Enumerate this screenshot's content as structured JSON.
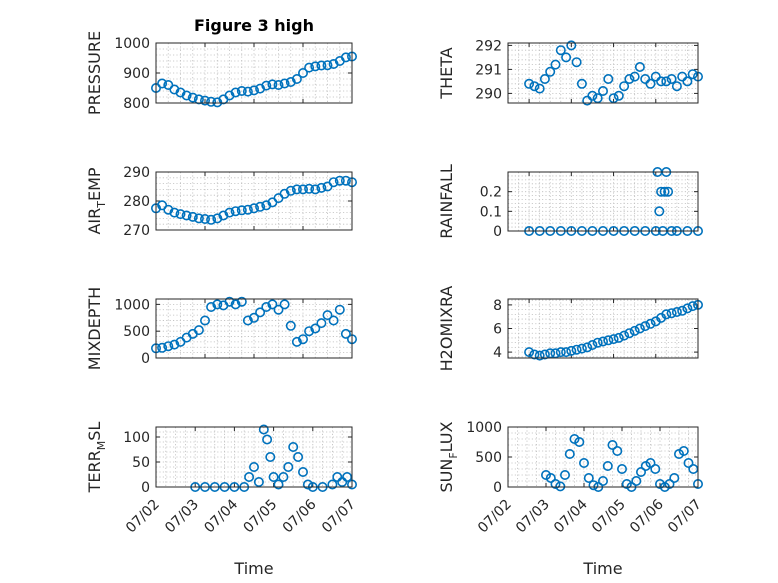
{
  "figure": {
    "title": "Figure 3 high",
    "xlabel": "Time",
    "time_ticks": [
      "07/02",
      "07/03",
      "07/04",
      "07/05",
      "07/06",
      "07/07"
    ]
  },
  "chart_data": [
    {
      "type": "scatter",
      "title": "Figure 3 high",
      "ylabel": "PRESSURE",
      "ylim": [
        800,
        1000
      ],
      "yticks": [
        "800",
        "900",
        "1000"
      ],
      "xlim": [
        "07/03 00:00",
        "07/07 00:00"
      ],
      "x": [
        "07/03 00:00",
        "07/03 03:00",
        "07/03 06:00",
        "07/03 09:00",
        "07/03 12:00",
        "07/03 15:00",
        "07/03 18:00",
        "07/03 21:00",
        "07/04 00:00",
        "07/04 03:00",
        "07/04 06:00",
        "07/04 09:00",
        "07/04 12:00",
        "07/04 15:00",
        "07/04 18:00",
        "07/04 21:00",
        "07/05 00:00",
        "07/05 03:00",
        "07/05 06:00",
        "07/05 09:00",
        "07/05 12:00",
        "07/05 15:00",
        "07/05 18:00",
        "07/05 21:00",
        "07/06 00:00",
        "07/06 03:00",
        "07/06 06:00",
        "07/06 09:00",
        "07/06 12:00",
        "07/06 15:00",
        "07/06 18:00",
        "07/06 21:00",
        "07/07 00:00"
      ],
      "y": [
        850,
        865,
        860,
        845,
        835,
        825,
        818,
        812,
        808,
        804,
        802,
        812,
        825,
        835,
        840,
        838,
        842,
        848,
        858,
        862,
        860,
        865,
        870,
        880,
        900,
        918,
        922,
        925,
        926,
        930,
        940,
        952,
        955
      ],
      "grid": true
    },
    {
      "type": "scatter",
      "ylabel": "THETA",
      "ylim": [
        289.6,
        292.1
      ],
      "yticks": [
        "290",
        "291",
        "292"
      ],
      "xlim": [
        "07/02 12:00",
        "07/07 00:00"
      ],
      "x": [
        "07/03 00:00",
        "07/03 03:00",
        "07/03 06:00",
        "07/03 09:00",
        "07/03 12:00",
        "07/03 15:00",
        "07/03 18:00",
        "07/03 21:00",
        "07/04 00:00",
        "07/04 03:00",
        "07/04 06:00",
        "07/04 09:00",
        "07/04 12:00",
        "07/04 15:00",
        "07/04 18:00",
        "07/04 21:00",
        "07/05 00:00",
        "07/05 03:00",
        "07/05 06:00",
        "07/05 09:00",
        "07/05 12:00",
        "07/05 15:00",
        "07/05 18:00",
        "07/05 21:00",
        "07/06 00:00",
        "07/06 03:00",
        "07/06 06:00",
        "07/06 09:00",
        "07/06 12:00",
        "07/06 15:00",
        "07/06 18:00",
        "07/06 21:00",
        "07/07 00:00"
      ],
      "y": [
        290.4,
        290.3,
        290.2,
        290.6,
        290.9,
        291.2,
        291.8,
        291.5,
        292.0,
        291.3,
        290.4,
        289.7,
        289.9,
        289.8,
        290.1,
        290.6,
        289.8,
        289.9,
        290.3,
        290.6,
        290.7,
        291.1,
        290.6,
        290.4,
        290.7,
        290.5,
        290.5,
        290.6,
        290.3,
        290.7,
        290.5,
        290.8,
        290.7
      ],
      "grid": true
    },
    {
      "type": "scatter",
      "ylabel": "AIR_TEMP",
      "ylim": [
        270,
        290
      ],
      "yticks": [
        "270",
        "280",
        "290"
      ],
      "xlim": [
        "07/03 00:00",
        "07/07 00:00"
      ],
      "x": [
        "07/03 00:00",
        "07/03 03:00",
        "07/03 06:00",
        "07/03 09:00",
        "07/03 12:00",
        "07/03 15:00",
        "07/03 18:00",
        "07/03 21:00",
        "07/04 00:00",
        "07/04 03:00",
        "07/04 06:00",
        "07/04 09:00",
        "07/04 12:00",
        "07/04 15:00",
        "07/04 18:00",
        "07/04 21:00",
        "07/05 00:00",
        "07/05 03:00",
        "07/05 06:00",
        "07/05 09:00",
        "07/05 12:00",
        "07/05 15:00",
        "07/05 18:00",
        "07/05 21:00",
        "07/06 00:00",
        "07/06 03:00",
        "07/06 06:00",
        "07/06 09:00",
        "07/06 12:00",
        "07/06 15:00",
        "07/06 18:00",
        "07/06 21:00",
        "07/07 00:00"
      ],
      "y": [
        277.5,
        278.5,
        277.0,
        276.0,
        275.5,
        275.0,
        274.5,
        274.0,
        273.8,
        273.5,
        274.0,
        275.0,
        276.0,
        276.5,
        276.8,
        277.0,
        277.5,
        278.0,
        278.5,
        279.5,
        281.0,
        282.5,
        283.5,
        284.0,
        284.0,
        284.2,
        284.0,
        284.5,
        285.0,
        286.5,
        287.0,
        287.0,
        286.5
      ],
      "grid": true
    },
    {
      "type": "scatter",
      "ylabel": "RAINFALL",
      "ylim": [
        0,
        0.3
      ],
      "yticks": [
        "0",
        "0.1",
        "0.2"
      ],
      "xlim": [
        "07/02 12:00",
        "07/07 00:00"
      ],
      "x": [
        "07/03 00:00",
        "07/03 06:00",
        "07/03 12:00",
        "07/03 18:00",
        "07/04 00:00",
        "07/04 06:00",
        "07/04 12:00",
        "07/04 18:00",
        "07/05 00:00",
        "07/05 06:00",
        "07/05 12:00",
        "07/05 18:00",
        "07/06 00:00",
        "07/06 01:00",
        "07/06 02:00",
        "07/06 03:00",
        "07/06 04:00",
        "07/06 05:00",
        "07/06 06:00",
        "07/06 07:00",
        "07/06 09:00",
        "07/06 12:00",
        "07/06 18:00",
        "07/07 00:00"
      ],
      "y": [
        0,
        0,
        0,
        0,
        0,
        0,
        0,
        0,
        0,
        0,
        0,
        0,
        0,
        0.3,
        0.1,
        0.2,
        0,
        0.2,
        0.3,
        0.2,
        0,
        0,
        0,
        0
      ],
      "grid": true
    },
    {
      "type": "scatter",
      "ylabel": "MIXDEPTH",
      "ylim": [
        0,
        1100
      ],
      "yticks": [
        "0",
        "500",
        "1000"
      ],
      "xlim": [
        "07/03 00:00",
        "07/07 00:00"
      ],
      "x": [
        "07/03 00:00",
        "07/03 03:00",
        "07/03 06:00",
        "07/03 09:00",
        "07/03 12:00",
        "07/03 15:00",
        "07/03 18:00",
        "07/03 21:00",
        "07/04 00:00",
        "07/04 03:00",
        "07/04 06:00",
        "07/04 09:00",
        "07/04 12:00",
        "07/04 15:00",
        "07/04 18:00",
        "07/04 21:00",
        "07/05 00:00",
        "07/05 03:00",
        "07/05 06:00",
        "07/05 09:00",
        "07/05 12:00",
        "07/05 15:00",
        "07/05 18:00",
        "07/05 21:00",
        "07/06 00:00",
        "07/06 03:00",
        "07/06 06:00",
        "07/06 09:00",
        "07/06 12:00",
        "07/06 15:00",
        "07/06 18:00",
        "07/06 21:00",
        "07/07 00:00"
      ],
      "y": [
        180,
        190,
        220,
        250,
        300,
        380,
        450,
        520,
        700,
        950,
        1000,
        980,
        1050,
        1000,
        1050,
        700,
        750,
        850,
        950,
        1000,
        900,
        1000,
        600,
        300,
        350,
        500,
        550,
        650,
        800,
        700,
        900,
        450,
        350
      ],
      "grid": true
    },
    {
      "type": "scatter",
      "ylabel": "H2OMIXRA",
      "ylim": [
        3.5,
        8.5
      ],
      "yticks": [
        "4",
        "6",
        "8"
      ],
      "xlim": [
        "07/02 12:00",
        "07/07 00:00"
      ],
      "x": [
        "07/03 00:00",
        "07/03 03:00",
        "07/03 06:00",
        "07/03 09:00",
        "07/03 12:00",
        "07/03 15:00",
        "07/03 18:00",
        "07/03 21:00",
        "07/04 00:00",
        "07/04 03:00",
        "07/04 06:00",
        "07/04 09:00",
        "07/04 12:00",
        "07/04 15:00",
        "07/04 18:00",
        "07/04 21:00",
        "07/05 00:00",
        "07/05 03:00",
        "07/05 06:00",
        "07/05 09:00",
        "07/05 12:00",
        "07/05 15:00",
        "07/05 18:00",
        "07/05 21:00",
        "07/06 00:00",
        "07/06 03:00",
        "07/06 06:00",
        "07/06 09:00",
        "07/06 12:00",
        "07/06 15:00",
        "07/06 18:00",
        "07/06 21:00",
        "07/07 00:00"
      ],
      "y": [
        4.0,
        3.8,
        3.7,
        3.8,
        3.9,
        3.9,
        4.0,
        4.0,
        4.1,
        4.2,
        4.3,
        4.4,
        4.6,
        4.8,
        4.9,
        5.0,
        5.1,
        5.2,
        5.4,
        5.6,
        5.8,
        6.0,
        6.2,
        6.4,
        6.6,
        6.9,
        7.2,
        7.3,
        7.4,
        7.5,
        7.7,
        7.9,
        8.0
      ],
      "grid": true
    },
    {
      "type": "scatter",
      "ylabel": "TERR_MSL",
      "ylim": [
        0,
        120
      ],
      "yticks": [
        "0",
        "50",
        "100"
      ],
      "xlim": [
        "07/02 00:00",
        "07/07 00:00"
      ],
      "x": [
        "07/03 00:00",
        "07/03 06:00",
        "07/03 12:00",
        "07/03 18:00",
        "07/04 00:00",
        "07/04 06:00",
        "07/04 09:00",
        "07/04 12:00",
        "07/04 15:00",
        "07/04 18:00",
        "07/04 20:00",
        "07/04 22:00",
        "07/05 00:00",
        "07/05 03:00",
        "07/05 06:00",
        "07/05 09:00",
        "07/05 12:00",
        "07/05 15:00",
        "07/05 18:00",
        "07/05 21:00",
        "07/06 00:00",
        "07/06 06:00",
        "07/06 12:00",
        "07/06 15:00",
        "07/06 18:00",
        "07/06 21:00",
        "07/07 00:00"
      ],
      "y": [
        0,
        0,
        0,
        0,
        0,
        0,
        20,
        40,
        10,
        115,
        95,
        60,
        20,
        5,
        20,
        40,
        80,
        60,
        30,
        5,
        0,
        0,
        5,
        20,
        10,
        20,
        5
      ],
      "grid": true
    },
    {
      "type": "scatter",
      "ylabel": "SUN_FLUX",
      "ylim": [
        0,
        1000
      ],
      "yticks": [
        "0",
        "500",
        "1000"
      ],
      "xlim": [
        "07/02 00:00",
        "07/07 00:00"
      ],
      "x": [
        "07/03 00:00",
        "07/03 03:00",
        "07/03 06:00",
        "07/03 09:00",
        "07/03 12:00",
        "07/03 15:00",
        "07/03 18:00",
        "07/03 21:00",
        "07/04 00:00",
        "07/04 03:00",
        "07/04 06:00",
        "07/04 09:00",
        "07/04 12:00",
        "07/04 15:00",
        "07/04 18:00",
        "07/04 21:00",
        "07/05 00:00",
        "07/05 03:00",
        "07/05 06:00",
        "07/05 09:00",
        "07/05 12:00",
        "07/05 15:00",
        "07/05 18:00",
        "07/05 21:00",
        "07/06 00:00",
        "07/06 03:00",
        "07/06 06:00",
        "07/06 09:00",
        "07/06 12:00",
        "07/06 15:00",
        "07/06 18:00",
        "07/06 21:00",
        "07/07 00:00"
      ],
      "y": [
        200,
        150,
        50,
        10,
        200,
        550,
        800,
        750,
        400,
        150,
        30,
        0,
        100,
        350,
        700,
        600,
        300,
        50,
        0,
        100,
        250,
        350,
        400,
        300,
        50,
        0,
        50,
        150,
        550,
        600,
        400,
        300,
        50
      ],
      "grid": true
    }
  ]
}
